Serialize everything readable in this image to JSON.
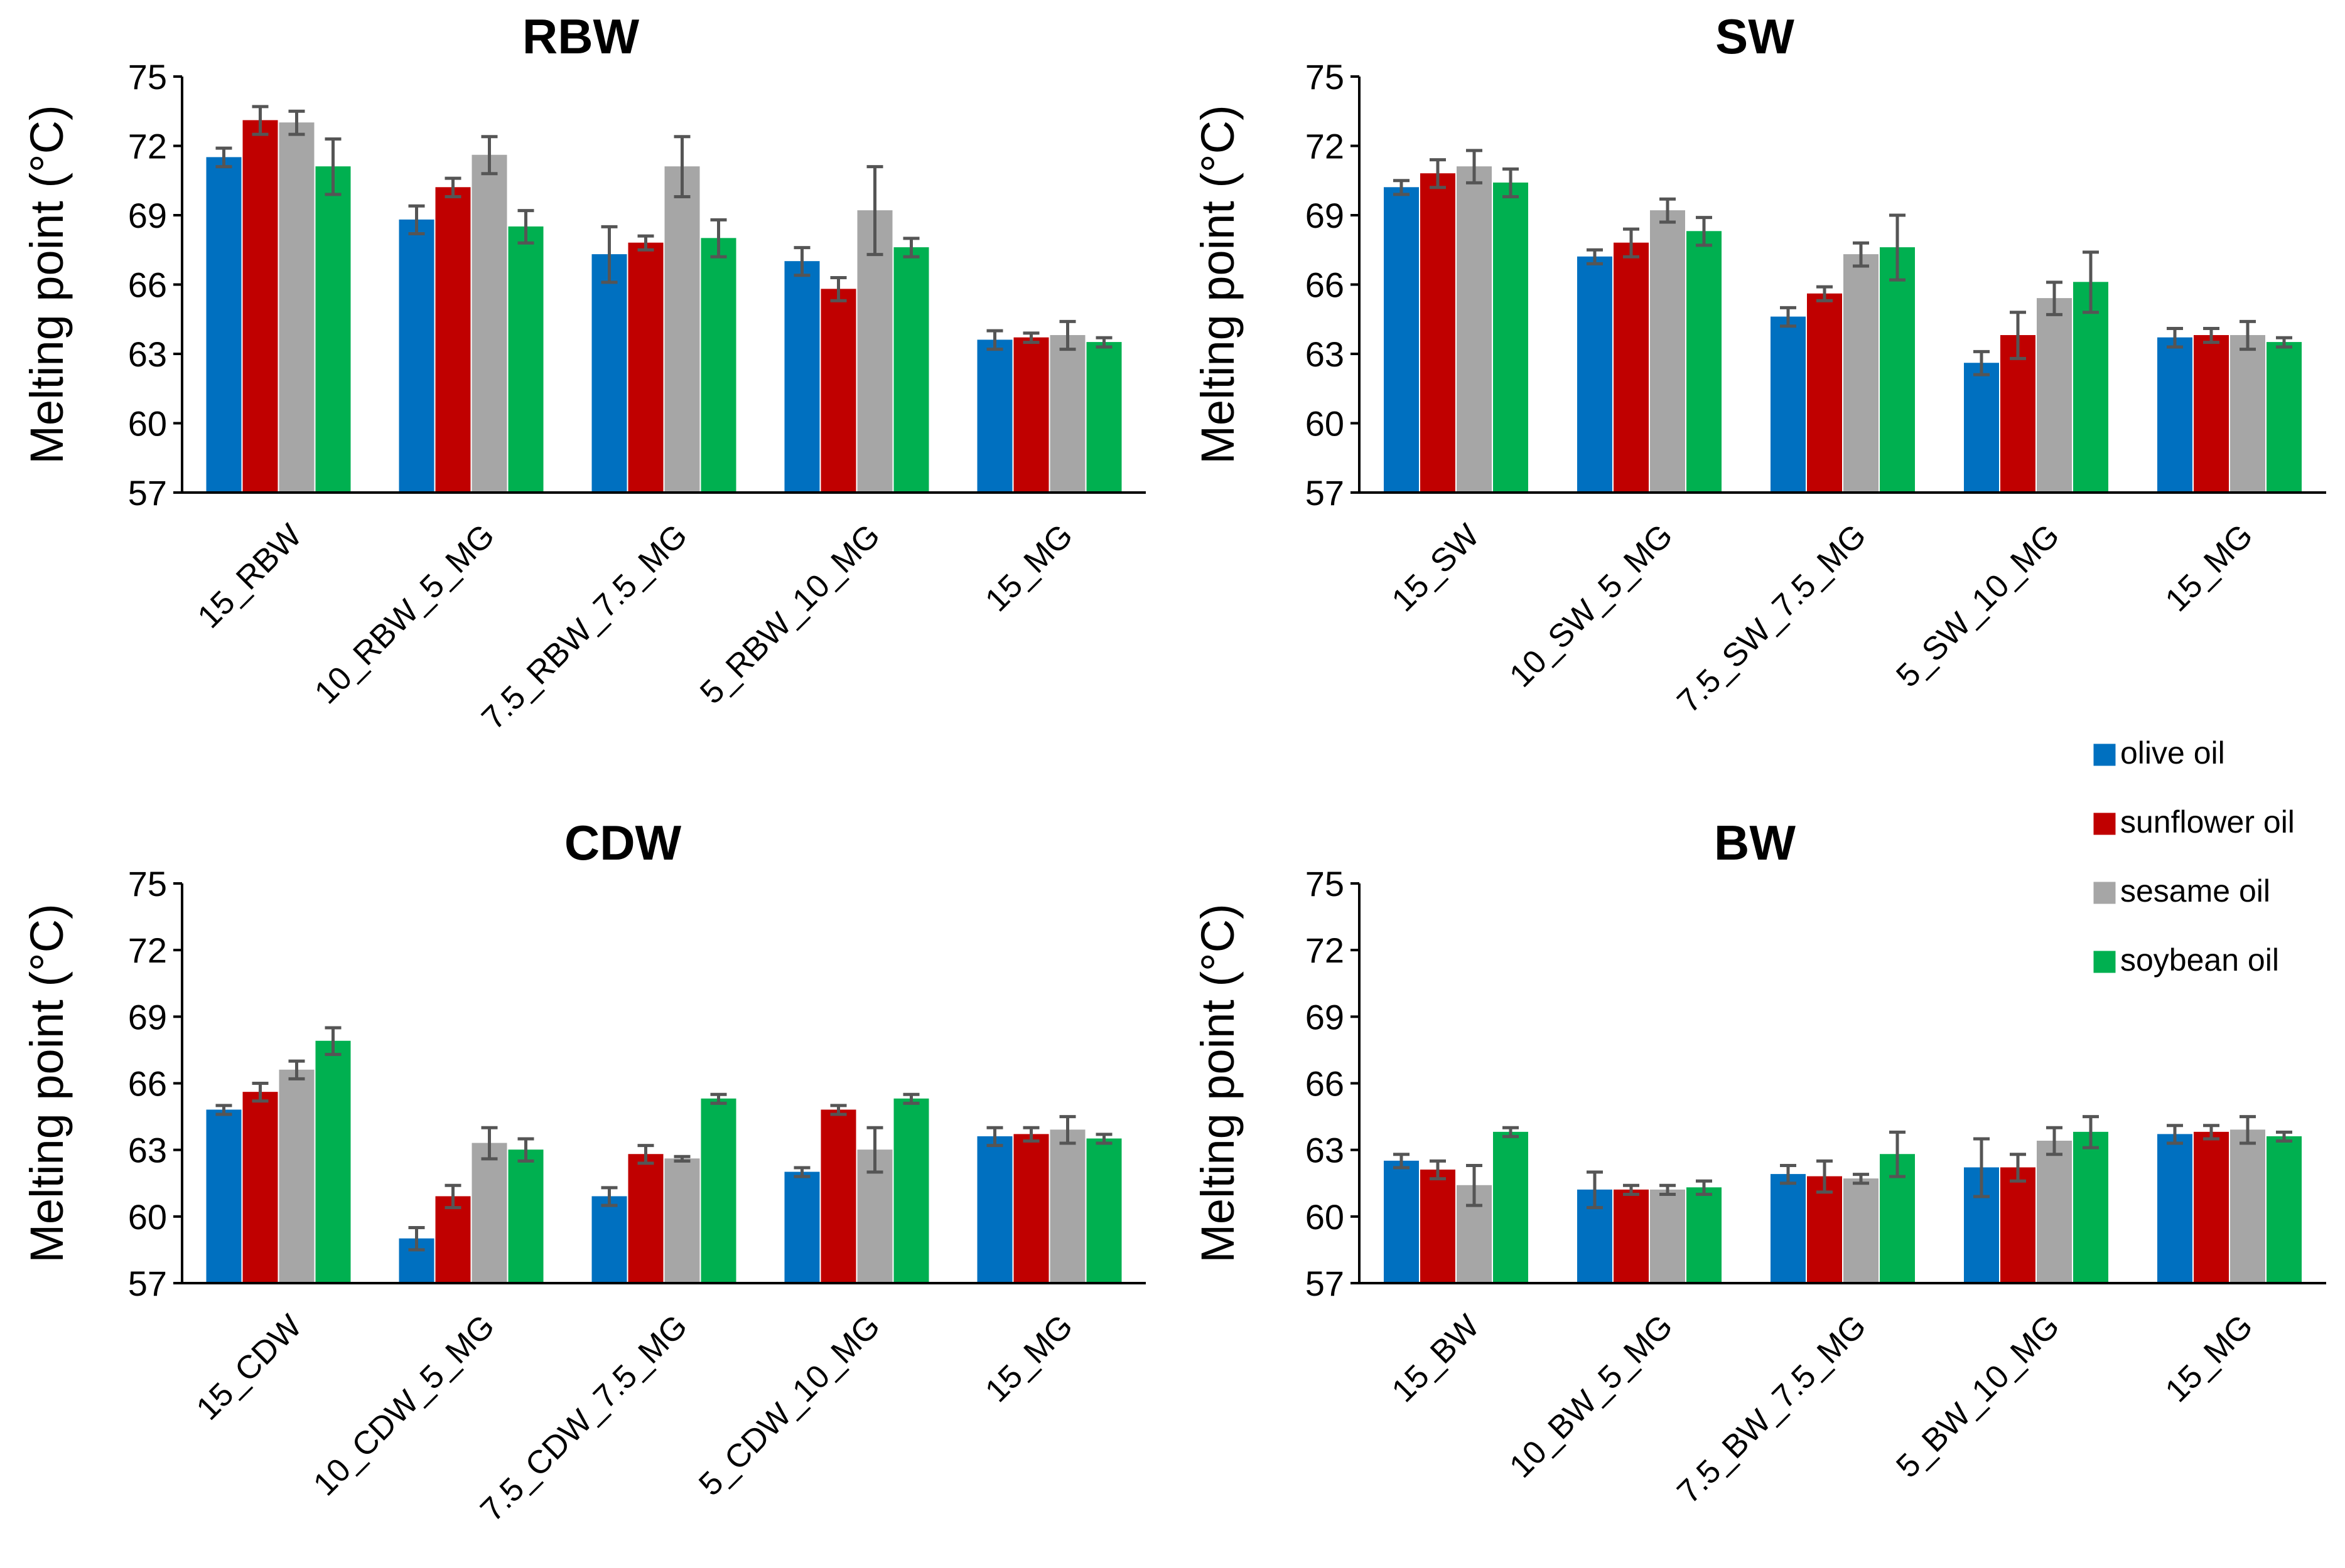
{
  "colors": {
    "olive oil": "#0070C0",
    "sunflower oil": "#C00000",
    "sesame oil": "#A6A6A6",
    "soybean oil": "#00B050"
  },
  "legend": [
    "olive oil",
    "sunflower oil",
    "sesame oil",
    "soybean oil"
  ],
  "chart_data": [
    {
      "type": "bar",
      "title": "RBW",
      "xlabel": "",
      "ylabel": "Melting point (°C)",
      "ylim": [
        57,
        75
      ],
      "yticks": [
        57,
        60,
        63,
        66,
        69,
        72,
        75
      ],
      "categories": [
        "15_RBW",
        "10_RBW_5_MG",
        "7.5_RBW_7.5_MG",
        "5_RBW_10_MG",
        "15_MG"
      ],
      "series": [
        {
          "name": "olive oil",
          "values": [
            71.5,
            68.8,
            67.3,
            67.0,
            63.6
          ],
          "errors": [
            0.4,
            0.6,
            1.2,
            0.6,
            0.4
          ]
        },
        {
          "name": "sunflower oil",
          "values": [
            73.1,
            70.2,
            67.8,
            65.8,
            63.7
          ],
          "errors": [
            0.6,
            0.4,
            0.3,
            0.5,
            0.2
          ]
        },
        {
          "name": "sesame oil",
          "values": [
            73.0,
            71.6,
            71.1,
            69.2,
            63.8
          ],
          "errors": [
            0.5,
            0.8,
            1.3,
            1.9,
            0.6
          ]
        },
        {
          "name": "soybean oil",
          "values": [
            71.1,
            68.5,
            68.0,
            67.6,
            63.5
          ],
          "errors": [
            1.2,
            0.7,
            0.8,
            0.4,
            0.2
          ]
        }
      ]
    },
    {
      "type": "bar",
      "title": "SW",
      "xlabel": "",
      "ylabel": "Melting point (°C)",
      "ylim": [
        57,
        75
      ],
      "yticks": [
        57,
        60,
        63,
        66,
        69,
        72,
        75
      ],
      "categories": [
        "15_SW",
        "10_SW_5_MG",
        "7.5_SW_7.5_MG",
        "5_SW_10_MG",
        "15_MG"
      ],
      "series": [
        {
          "name": "olive oil",
          "values": [
            70.2,
            67.2,
            64.6,
            62.6,
            63.7
          ],
          "errors": [
            0.3,
            0.3,
            0.4,
            0.5,
            0.4
          ]
        },
        {
          "name": "sunflower oil",
          "values": [
            70.8,
            67.8,
            65.6,
            63.8,
            63.8
          ],
          "errors": [
            0.6,
            0.6,
            0.3,
            1.0,
            0.3
          ]
        },
        {
          "name": "sesame oil",
          "values": [
            71.1,
            69.2,
            67.3,
            65.4,
            63.8
          ],
          "errors": [
            0.7,
            0.5,
            0.5,
            0.7,
            0.6
          ]
        },
        {
          "name": "soybean oil",
          "values": [
            70.4,
            68.3,
            67.6,
            66.1,
            63.5
          ],
          "errors": [
            0.6,
            0.6,
            1.4,
            1.3,
            0.2
          ]
        }
      ]
    },
    {
      "type": "bar",
      "title": "CDW",
      "xlabel": "",
      "ylabel": "Melting point (°C)",
      "ylim": [
        57,
        75
      ],
      "yticks": [
        57,
        60,
        63,
        66,
        69,
        72,
        75
      ],
      "categories": [
        "15_CDW",
        "10_CDW_5_MG",
        "7.5_CDW_7.5_MG",
        "5_CDW_10_MG",
        "15_MG"
      ],
      "series": [
        {
          "name": "olive oil",
          "values": [
            64.8,
            59.0,
            60.9,
            62.0,
            63.6
          ],
          "errors": [
            0.2,
            0.5,
            0.4,
            0.2,
            0.4
          ]
        },
        {
          "name": "sunflower oil",
          "values": [
            65.6,
            60.9,
            62.8,
            64.8,
            63.7
          ],
          "errors": [
            0.4,
            0.5,
            0.4,
            0.2,
            0.3
          ]
        },
        {
          "name": "sesame oil",
          "values": [
            66.6,
            63.3,
            62.6,
            63.0,
            63.9
          ],
          "errors": [
            0.4,
            0.7,
            0.1,
            1.0,
            0.6
          ]
        },
        {
          "name": "soybean oil",
          "values": [
            67.9,
            63.0,
            65.3,
            65.3,
            63.5
          ],
          "errors": [
            0.6,
            0.5,
            0.2,
            0.2,
            0.2
          ]
        }
      ]
    },
    {
      "type": "bar",
      "title": "BW",
      "xlabel": "",
      "ylabel": "Melting point (°C)",
      "ylim": [
        57,
        75
      ],
      "yticks": [
        57,
        60,
        63,
        66,
        69,
        72,
        75
      ],
      "categories": [
        "15_BW",
        "10_BW_5_MG",
        "7.5_BW_7.5_MG",
        "5_BW_10_MG",
        "15_MG"
      ],
      "series": [
        {
          "name": "olive oil",
          "values": [
            62.5,
            61.2,
            61.9,
            62.2,
            63.7
          ],
          "errors": [
            0.3,
            0.8,
            0.4,
            1.3,
            0.4
          ]
        },
        {
          "name": "sunflower oil",
          "values": [
            62.1,
            61.2,
            61.8,
            62.2,
            63.8
          ],
          "errors": [
            0.4,
            0.2,
            0.7,
            0.6,
            0.3
          ]
        },
        {
          "name": "sesame oil",
          "values": [
            61.4,
            61.2,
            61.7,
            63.4,
            63.9
          ],
          "errors": [
            0.9,
            0.2,
            0.2,
            0.6,
            0.6
          ]
        },
        {
          "name": "soybean oil",
          "values": [
            63.8,
            61.3,
            62.8,
            63.8,
            63.6
          ],
          "errors": [
            0.2,
            0.3,
            1.0,
            0.7,
            0.2
          ]
        }
      ]
    }
  ]
}
